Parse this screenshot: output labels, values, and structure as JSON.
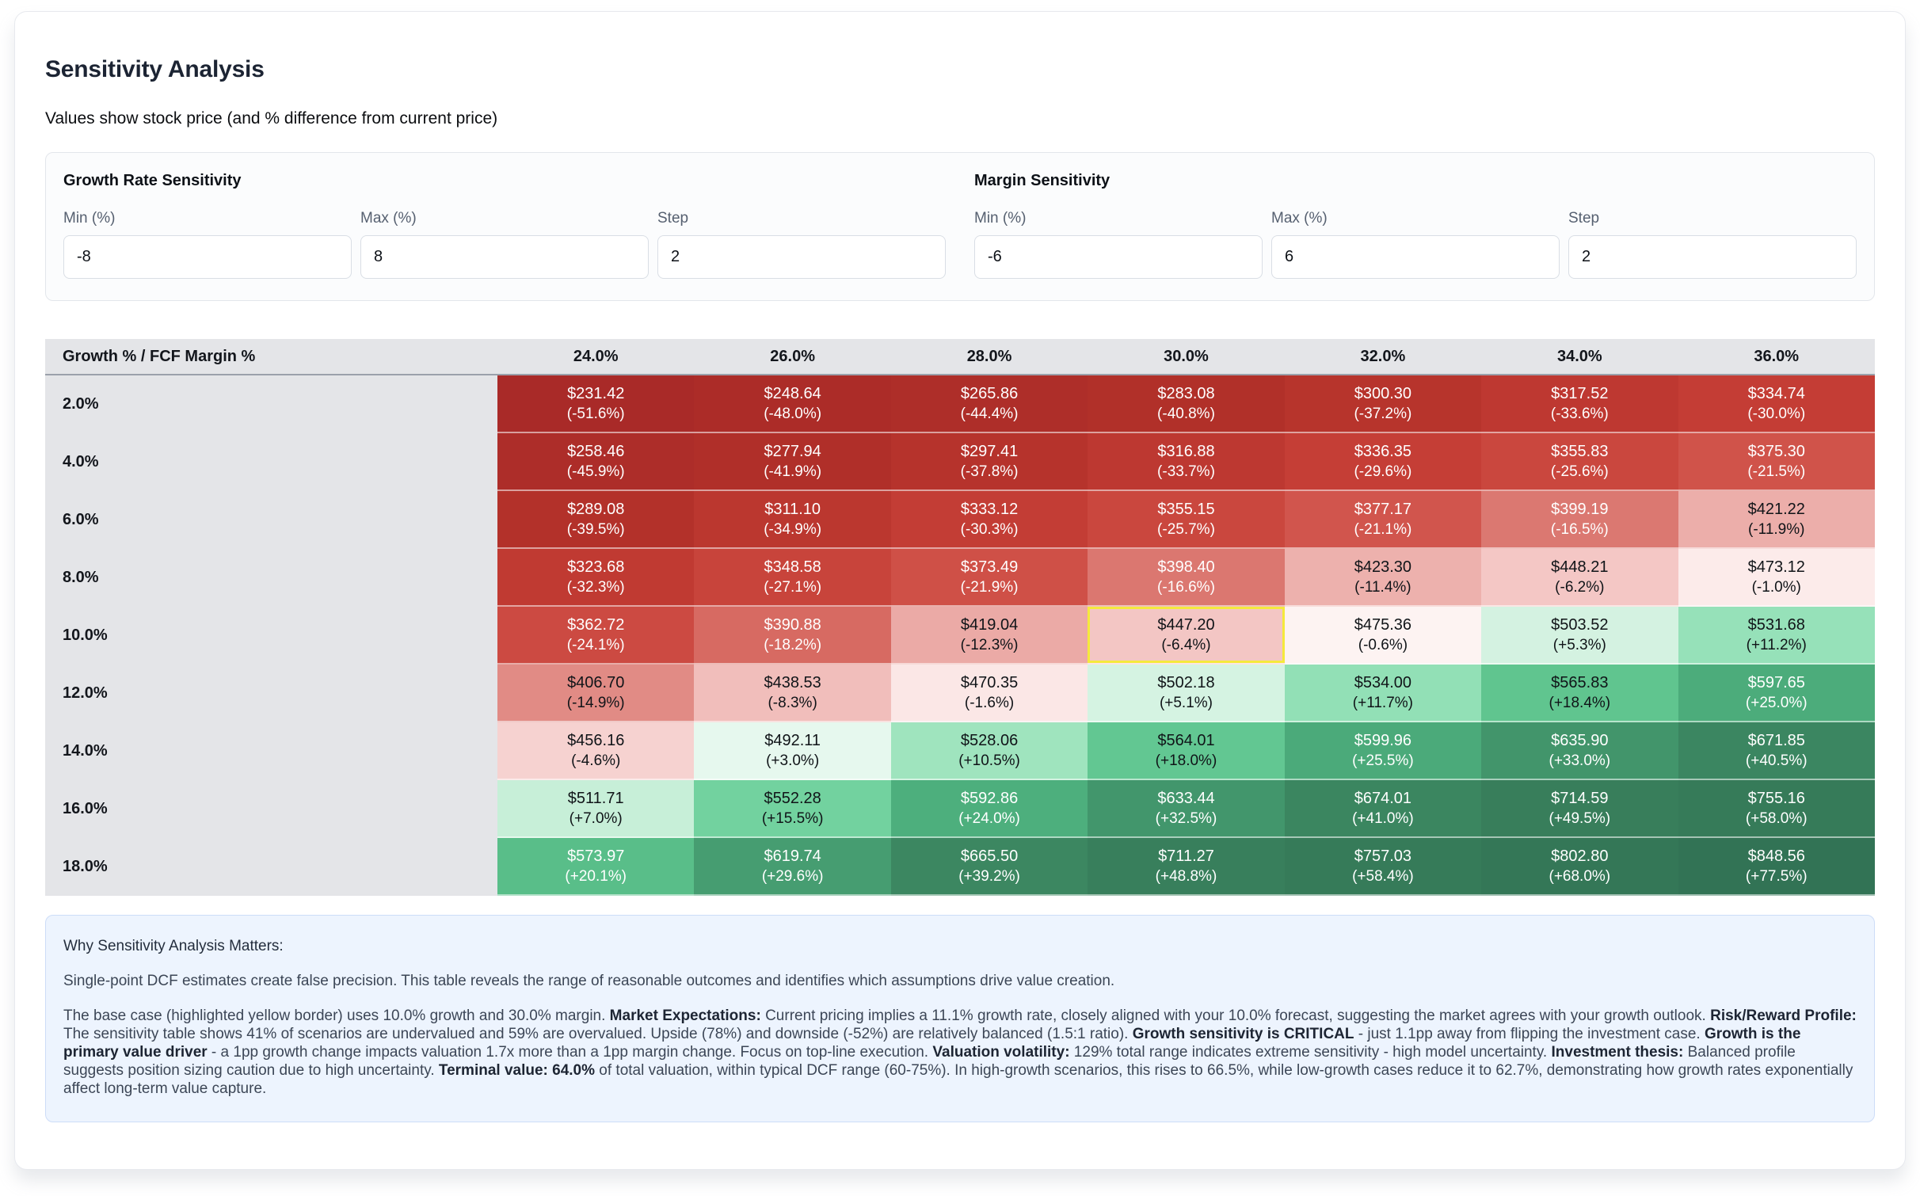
{
  "page": {
    "title": "Sensitivity Analysis",
    "subtitle": "Values show stock price (and % difference from current price)"
  },
  "controls": {
    "sections": [
      {
        "title": "Growth Rate Sensitivity",
        "fields": [
          {
            "label": "Min (%)",
            "value": "-8"
          },
          {
            "label": "Max (%)",
            "value": "8"
          },
          {
            "label": "Step",
            "value": "2"
          }
        ]
      },
      {
        "title": "Margin Sensitivity",
        "fields": [
          {
            "label": "Min (%)",
            "value": "-6"
          },
          {
            "label": "Max (%)",
            "value": "6"
          },
          {
            "label": "Step",
            "value": "2"
          }
        ]
      }
    ]
  },
  "table": {
    "corner_label": "Growth % / FCF Margin %",
    "col_headers": [
      "24.0%",
      "26.0%",
      "28.0%",
      "30.0%",
      "32.0%",
      "34.0%",
      "36.0%"
    ],
    "row_headers": [
      "2.0%",
      "4.0%",
      "6.0%",
      "8.0%",
      "10.0%",
      "12.0%",
      "14.0%",
      "16.0%",
      "18.0%"
    ],
    "cells": [
      [
        [
          "231.42",
          -51.6
        ],
        [
          "248.64",
          -48.0
        ],
        [
          "265.86",
          -44.4
        ],
        [
          "283.08",
          -40.8
        ],
        [
          "300.30",
          -37.2
        ],
        [
          "317.52",
          -33.6
        ],
        [
          "334.74",
          -30.0
        ]
      ],
      [
        [
          "258.46",
          -45.9
        ],
        [
          "277.94",
          -41.9
        ],
        [
          "297.41",
          -37.8
        ],
        [
          "316.88",
          -33.7
        ],
        [
          "336.35",
          -29.6
        ],
        [
          "355.83",
          -25.6
        ],
        [
          "375.30",
          -21.5
        ]
      ],
      [
        [
          "289.08",
          -39.5
        ],
        [
          "311.10",
          -34.9
        ],
        [
          "333.12",
          -30.3
        ],
        [
          "355.15",
          -25.7
        ],
        [
          "377.17",
          -21.1
        ],
        [
          "399.19",
          -16.5
        ],
        [
          "421.22",
          -11.9
        ]
      ],
      [
        [
          "323.68",
          -32.3
        ],
        [
          "348.58",
          -27.1
        ],
        [
          "373.49",
          -21.9
        ],
        [
          "398.40",
          -16.6
        ],
        [
          "423.30",
          -11.4
        ],
        [
          "448.21",
          -6.2
        ],
        [
          "473.12",
          -1.0
        ]
      ],
      [
        [
          "362.72",
          -24.1
        ],
        [
          "390.88",
          -18.2
        ],
        [
          "419.04",
          -12.3
        ],
        [
          "447.20",
          -6.4
        ],
        [
          "475.36",
          -0.6
        ],
        [
          "503.52",
          5.3
        ],
        [
          "531.68",
          11.2
        ]
      ],
      [
        [
          "406.70",
          -14.9
        ],
        [
          "438.53",
          -8.3
        ],
        [
          "470.35",
          -1.6
        ],
        [
          "502.18",
          5.1
        ],
        [
          "534.00",
          11.7
        ],
        [
          "565.83",
          18.4
        ],
        [
          "597.65",
          25.0
        ]
      ],
      [
        [
          "456.16",
          -4.6
        ],
        [
          "492.11",
          3.0
        ],
        [
          "528.06",
          10.5
        ],
        [
          "564.01",
          18.0
        ],
        [
          "599.96",
          25.5
        ],
        [
          "635.90",
          33.0
        ],
        [
          "671.85",
          40.5
        ]
      ],
      [
        [
          "511.71",
          7.0
        ],
        [
          "552.28",
          15.5
        ],
        [
          "592.86",
          24.0
        ],
        [
          "633.44",
          32.5
        ],
        [
          "674.01",
          41.0
        ],
        [
          "714.59",
          49.5
        ],
        [
          "755.16",
          58.0
        ]
      ],
      [
        [
          "573.97",
          20.1
        ],
        [
          "619.74",
          29.6
        ],
        [
          "665.50",
          39.2
        ],
        [
          "711.27",
          48.8
        ],
        [
          "757.03",
          58.4
        ],
        [
          "802.80",
          68.0
        ],
        [
          "848.56",
          77.5
        ]
      ]
    ],
    "highlight": {
      "row_index": 4,
      "col_index": 3
    }
  },
  "colors": {
    "header_bg": "#e4e5e8",
    "header_divider": "#9ba1ab",
    "highlight_border": "#f5e93c",
    "cell_text_dark": "#101418",
    "cell_text_light": "#ffffff",
    "scale": [
      [
        -55,
        "#a62828"
      ],
      [
        -40,
        "#b23029"
      ],
      [
        -30,
        "#c43d35"
      ],
      [
        -22,
        "#cf4f46"
      ],
      [
        -17,
        "#d9726b"
      ],
      [
        -12,
        "#ecaeaa"
      ],
      [
        -6,
        "#f4c8c6"
      ],
      [
        -1,
        "#fcebea"
      ],
      [
        0,
        "#ffffff"
      ],
      [
        4,
        "#ddf5e8"
      ],
      [
        8,
        "#c0edd3"
      ],
      [
        11,
        "#98e2ba"
      ],
      [
        15,
        "#75d4a2"
      ],
      [
        19,
        "#5cc28c"
      ],
      [
        24,
        "#4daf7d"
      ],
      [
        30,
        "#459c70"
      ],
      [
        38,
        "#3c8862"
      ],
      [
        50,
        "#387e5b"
      ],
      [
        80,
        "#317254"
      ]
    ]
  },
  "footer": {
    "title": "Why Sensitivity Analysis Matters:",
    "intro": "Single-point DCF estimates create false precision. This table reveals the range of reasonable outcomes and identifies which assumptions drive value creation.",
    "analysis": [
      {
        "bold": false,
        "text": "The base case (highlighted yellow border) uses 10.0% growth and 30.0% margin. "
      },
      {
        "bold": true,
        "text": "Market Expectations:"
      },
      {
        "bold": false,
        "text": " Current pricing implies a 11.1% growth rate, closely aligned with your 10.0% forecast, suggesting the market agrees with your growth outlook. "
      },
      {
        "bold": true,
        "text": "Risk/Reward Profile:"
      },
      {
        "bold": false,
        "text": " The sensitivity table shows 41% of scenarios are undervalued and 59% are overvalued. Upside (78%) and downside (-52%) are relatively balanced (1.5:1 ratio). "
      },
      {
        "bold": true,
        "text": "Growth sensitivity is CRITICAL"
      },
      {
        "bold": false,
        "text": " - just 1.1pp away from flipping the investment case. "
      },
      {
        "bold": true,
        "text": "Growth is the primary value driver"
      },
      {
        "bold": false,
        "text": " - a 1pp growth change impacts valuation 1.7x more than a 1pp margin change. Focus on top-line execution. "
      },
      {
        "bold": true,
        "text": "Valuation volatility:"
      },
      {
        "bold": false,
        "text": " 129% total range indicates extreme sensitivity - high model uncertainty. "
      },
      {
        "bold": true,
        "text": "Investment thesis:"
      },
      {
        "bold": false,
        "text": " Balanced profile suggests position sizing caution due to high uncertainty. "
      },
      {
        "bold": true,
        "text": "Terminal value: 64.0%"
      },
      {
        "bold": false,
        "text": " of total valuation, within typical DCF range (60-75%). In high-growth scenarios, this rises to 66.5%, while low-growth cases reduce it to 62.7%, demonstrating how growth rates exponentially affect long-term value capture."
      }
    ]
  }
}
